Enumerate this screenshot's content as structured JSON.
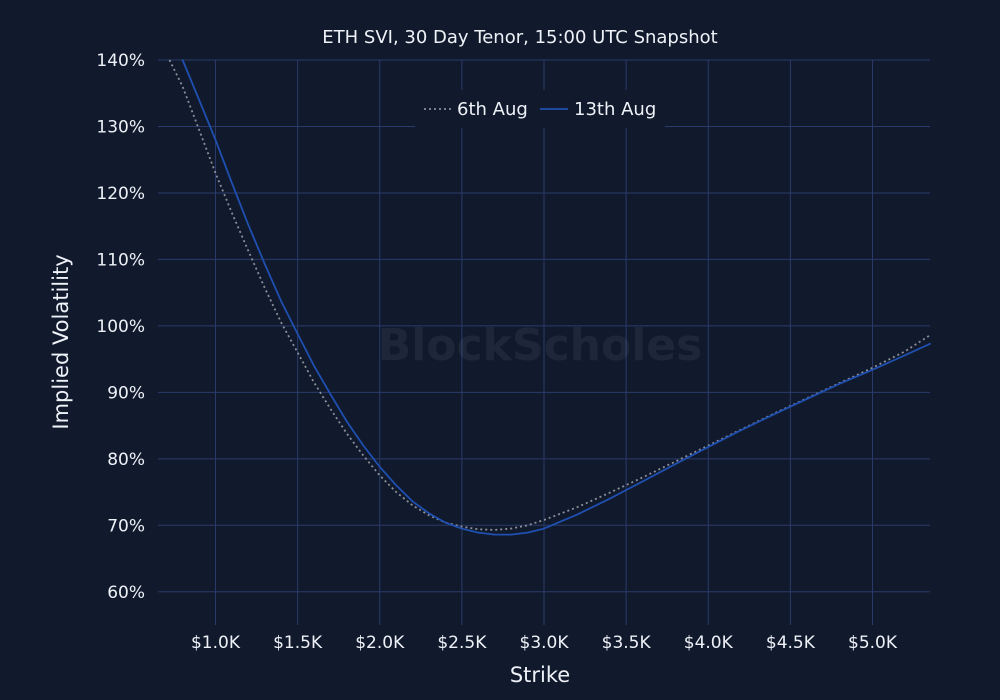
{
  "chart_data": {
    "type": "line",
    "title": "ETH SVI, 30 Day Tenor, 15:00 UTC Snapshot",
    "xlabel": "Strike",
    "ylabel": "Implied Volatility",
    "xlim": [
      650,
      5350
    ],
    "ylim": [
      55,
      140
    ],
    "x_ticks": [
      1000,
      1500,
      2000,
      2500,
      3000,
      3500,
      4000,
      4500,
      5000
    ],
    "x_tick_labels": [
      "$1.0K",
      "$1.5K",
      "$2.0K",
      "$2.5K",
      "$3.0K",
      "$3.5K",
      "$4.0K",
      "$4.5K",
      "$5.0K"
    ],
    "y_ticks": [
      60,
      70,
      80,
      90,
      100,
      110,
      120,
      130,
      140
    ],
    "y_tick_labels": [
      "60%",
      "70%",
      "80%",
      "90%",
      "100%",
      "110%",
      "120%",
      "130%",
      "140%"
    ],
    "grid": true,
    "legend_position": "top-center",
    "watermark": "BlockScholes",
    "series": [
      {
        "name": "6th Aug",
        "color": "#8a8f99",
        "dash": "dotted",
        "x": [
          720,
          800,
          900,
          1000,
          1100,
          1200,
          1300,
          1400,
          1500,
          1600,
          1700,
          1800,
          1900,
          2000,
          2100,
          2200,
          2300,
          2400,
          2500,
          2600,
          2700,
          2800,
          2900,
          3000,
          3200,
          3400,
          3600,
          3800,
          4000,
          4200,
          4400,
          4600,
          4800,
          5000,
          5200,
          5350
        ],
        "y": [
          140,
          136,
          129.5,
          123,
          117,
          111.3,
          105.7,
          100.5,
          96,
          91.5,
          87.5,
          83.8,
          80.5,
          77.5,
          75,
          73,
          71.5,
          70.4,
          69.8,
          69.4,
          69.3,
          69.5,
          70,
          70.8,
          72.7,
          74.9,
          77.2,
          79.6,
          82,
          84.4,
          86.8,
          89.1,
          91.4,
          93.7,
          96.2,
          98.6
        ]
      },
      {
        "name": "13th Aug",
        "color": "#1f4fb0",
        "dash": "solid",
        "x": [
          800,
          900,
          1000,
          1100,
          1200,
          1300,
          1400,
          1500,
          1600,
          1700,
          1800,
          1900,
          2000,
          2100,
          2200,
          2300,
          2400,
          2500,
          2600,
          2700,
          2800,
          2900,
          3000,
          3200,
          3400,
          3600,
          3800,
          4000,
          4200,
          4400,
          4600,
          4800,
          5000,
          5200,
          5350
        ],
        "y": [
          140,
          134,
          128,
          121.5,
          115.2,
          109.3,
          103.7,
          98.8,
          94,
          89.7,
          85.6,
          82,
          78.8,
          76,
          73.6,
          71.8,
          70.4,
          69.5,
          68.9,
          68.6,
          68.6,
          68.9,
          69.5,
          71.6,
          74,
          76.6,
          79.2,
          81.8,
          84.3,
          86.7,
          89,
          91.3,
          93.4,
          95.6,
          97.3
        ]
      }
    ]
  }
}
